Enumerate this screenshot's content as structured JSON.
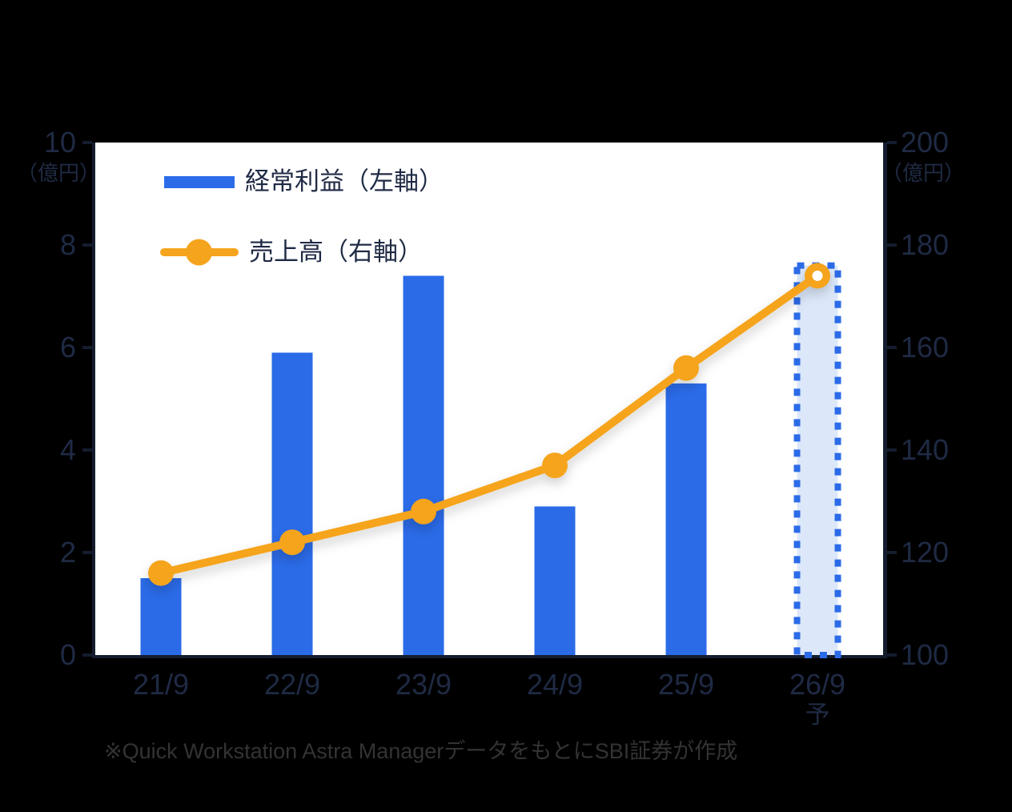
{
  "page": {
    "background": "#000000"
  },
  "colors": {
    "page_bg": "#000000",
    "plot_bg": "#FFFFFF",
    "bar": "#2B6BE8",
    "bar_forecast_fill": "#DCE8FA",
    "line": "#F5A41D",
    "axis_text": "#1F2A44",
    "spine": "#141C2E",
    "footer_text": "#333333"
  },
  "chart_data": {
    "type": "combo",
    "subtypes": [
      "bar",
      "line"
    ],
    "categories": [
      "21/9",
      "22/9",
      "23/9",
      "24/9",
      "25/9",
      "26/9"
    ],
    "category_annotations": [
      "",
      "",
      "",
      "",
      "",
      "予"
    ],
    "series": [
      {
        "name": "経常利益（左軸）",
        "type": "bar",
        "axis": "left",
        "values": [
          1.5,
          5.9,
          7.4,
          2.9,
          5.3,
          7.6
        ],
        "forecast_indices": [
          5
        ]
      },
      {
        "name": "売上高（右軸）",
        "type": "line",
        "axis": "right",
        "values": [
          116,
          122,
          128,
          137,
          156,
          174
        ],
        "open_point_indices": [
          5
        ]
      }
    ],
    "left_axis": {
      "unit": "（億円）",
      "ticks": [
        0,
        2,
        4,
        6,
        8,
        10
      ],
      "range": [
        0,
        10
      ]
    },
    "right_axis": {
      "unit": "（億円）",
      "ticks": [
        100,
        120,
        140,
        160,
        180,
        200
      ],
      "range": [
        100,
        200
      ]
    },
    "legend_position": "top-left-inside",
    "grid": false
  },
  "footer": {
    "note": "※Quick Workstation Astra ManagerデータをもとにSBI証券が作成"
  }
}
